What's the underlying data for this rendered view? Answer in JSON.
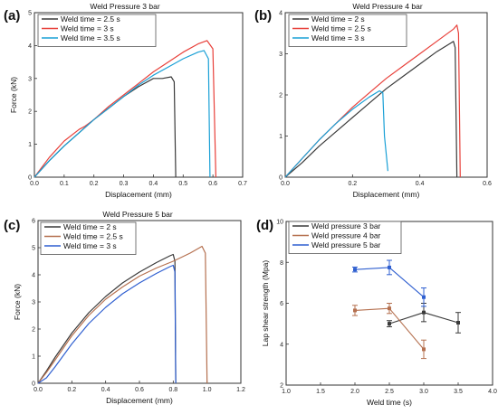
{
  "colors": {
    "black": "#3a3a3a",
    "red": "#e8403a",
    "cyan": "#1aa0d6",
    "brown": "#b5704f",
    "blue": "#2f5fd0"
  },
  "chart_data": [
    {
      "type": "line",
      "label": "(a)",
      "title": "Weld Pressure 3 bar",
      "xlabel": "Displacement (mm)",
      "ylabel": "Force (kN)",
      "xlim": [
        0,
        0.7
      ],
      "ylim": [
        0,
        5
      ],
      "xticks": [
        "0.0",
        "0.1",
        "0.2",
        "0.3",
        "0.4",
        "0.5",
        "0.6",
        "0.7"
      ],
      "yticks": [
        "0",
        "1",
        "2",
        "3",
        "4",
        "5"
      ],
      "legend_position": "top-left",
      "series": [
        {
          "name": "Weld time = 2.5 s",
          "color": "black",
          "x": [
            0,
            0.05,
            0.1,
            0.15,
            0.2,
            0.25,
            0.3,
            0.35,
            0.4,
            0.43,
            0.46,
            0.47,
            0.475
          ],
          "y": [
            0,
            0.5,
            0.95,
            1.35,
            1.75,
            2.1,
            2.45,
            2.75,
            3.0,
            3.0,
            3.05,
            2.9,
            0
          ]
        },
        {
          "name": "Weld time = 3 s",
          "color": "red",
          "x": [
            0,
            0.05,
            0.1,
            0.15,
            0.17,
            0.2,
            0.25,
            0.3,
            0.35,
            0.4,
            0.45,
            0.5,
            0.55,
            0.58,
            0.6,
            0.61
          ],
          "y": [
            0,
            0.6,
            1.1,
            1.45,
            1.55,
            1.75,
            2.15,
            2.5,
            2.85,
            3.2,
            3.5,
            3.8,
            4.05,
            4.15,
            3.9,
            0
          ]
        },
        {
          "name": "Weld time = 3.5 s",
          "color": "cyan",
          "x": [
            0,
            0.05,
            0.1,
            0.15,
            0.2,
            0.25,
            0.3,
            0.35,
            0.4,
            0.45,
            0.5,
            0.55,
            0.57,
            0.585,
            0.59
          ],
          "y": [
            0,
            0.5,
            0.95,
            1.35,
            1.75,
            2.1,
            2.45,
            2.8,
            3.1,
            3.35,
            3.6,
            3.8,
            3.85,
            3.6,
            0
          ]
        }
      ]
    },
    {
      "type": "line",
      "label": "(b)",
      "title": "Weld Pressure 4 bar",
      "xlabel": "Displacement (mm)",
      "ylabel": "",
      "xlim": [
        0,
        0.6
      ],
      "ylim": [
        0,
        4
      ],
      "xticks": [
        "0.0",
        "0.2",
        "0.4",
        "0.6"
      ],
      "yticks": [
        "0",
        "1",
        "2",
        "3",
        "4"
      ],
      "legend_position": "top-left",
      "series": [
        {
          "name": "Weld time = 2 s",
          "color": "black",
          "x": [
            0,
            0.05,
            0.1,
            0.15,
            0.2,
            0.25,
            0.3,
            0.35,
            0.4,
            0.45,
            0.49,
            0.5,
            0.505,
            0.51
          ],
          "y": [
            0,
            0.35,
            0.75,
            1.1,
            1.45,
            1.8,
            2.15,
            2.45,
            2.75,
            3.05,
            3.25,
            3.3,
            3.15,
            0
          ]
        },
        {
          "name": "Weld time = 2.5 s",
          "color": "red",
          "x": [
            0,
            0.05,
            0.1,
            0.15,
            0.2,
            0.25,
            0.3,
            0.35,
            0.4,
            0.45,
            0.5,
            0.51,
            0.515,
            0.52
          ],
          "y": [
            0,
            0.45,
            0.9,
            1.3,
            1.7,
            2.05,
            2.4,
            2.7,
            3.0,
            3.3,
            3.6,
            3.7,
            3.5,
            0
          ]
        },
        {
          "name": "Weld time = 3 s",
          "color": "cyan",
          "x": [
            0,
            0.05,
            0.1,
            0.15,
            0.2,
            0.25,
            0.28,
            0.29,
            0.295,
            0.305
          ],
          "y": [
            0,
            0.45,
            0.9,
            1.3,
            1.65,
            1.95,
            2.1,
            2.05,
            1.0,
            0.15
          ]
        }
      ]
    },
    {
      "type": "line",
      "label": "(c)",
      "title": "Weld Pressure 5 bar",
      "xlabel": "Displacement (mm)",
      "ylabel": "Force (kN)",
      "xlim": [
        0,
        1.2
      ],
      "ylim": [
        0,
        6
      ],
      "xticks": [
        "0.0",
        "0.2",
        "0.4",
        "0.6",
        "0.8",
        "1.0",
        "1.2"
      ],
      "yticks": [
        "0",
        "1",
        "2",
        "3",
        "4",
        "5",
        "6"
      ],
      "legend_position": "top-left",
      "series": [
        {
          "name": "Weld time = 2 s",
          "color": "black",
          "x": [
            0,
            0.05,
            0.1,
            0.2,
            0.3,
            0.4,
            0.5,
            0.6,
            0.7,
            0.78,
            0.8,
            0.81,
            0.815
          ],
          "y": [
            0,
            0.45,
            0.95,
            1.85,
            2.6,
            3.2,
            3.7,
            4.1,
            4.45,
            4.7,
            4.75,
            4.5,
            0
          ]
        },
        {
          "name": "Weld time = 2.5 s",
          "color": "brown",
          "x": [
            0,
            0.05,
            0.1,
            0.2,
            0.3,
            0.4,
            0.5,
            0.6,
            0.7,
            0.8,
            0.9,
            0.97,
            0.99,
            1.0
          ],
          "y": [
            0,
            0.4,
            0.85,
            1.75,
            2.5,
            3.1,
            3.55,
            3.95,
            4.25,
            4.5,
            4.8,
            5.05,
            4.8,
            0
          ]
        },
        {
          "name": "Weld time = 3 s",
          "color": "blue",
          "x": [
            0,
            0.05,
            0.1,
            0.2,
            0.3,
            0.4,
            0.5,
            0.6,
            0.7,
            0.78,
            0.8,
            0.81,
            0.815
          ],
          "y": [
            0,
            0.2,
            0.6,
            1.45,
            2.2,
            2.8,
            3.3,
            3.7,
            4.05,
            4.3,
            4.35,
            4.1,
            0
          ]
        }
      ]
    },
    {
      "type": "line",
      "label": "(d)",
      "title": "",
      "xlabel": "Weld time (s)",
      "ylabel": "Lap shear strength (Mpa)",
      "xlim": [
        1.0,
        4.0
      ],
      "ylim": [
        2,
        10
      ],
      "xticks": [
        "1.0",
        "1.5",
        "2.0",
        "2.5",
        "3.0",
        "3.5",
        "4.0"
      ],
      "yticks": [
        "2",
        "4",
        "6",
        "8",
        "10"
      ],
      "legend_position": "top-right",
      "series": [
        {
          "name": "Weld pressure 3 bar",
          "color": "black",
          "x": [
            2.5,
            3.0,
            3.5
          ],
          "y": [
            5.0,
            5.55,
            5.05
          ],
          "err": [
            0.15,
            0.45,
            0.5
          ]
        },
        {
          "name": "Weld pressure 4 bar",
          "color": "brown",
          "x": [
            2.0,
            2.5,
            3.0
          ],
          "y": [
            5.65,
            5.75,
            3.75
          ],
          "err": [
            0.25,
            0.25,
            0.45
          ]
        },
        {
          "name": "Weld pressure 5 bar",
          "color": "blue",
          "x": [
            2.0,
            2.5,
            3.0
          ],
          "y": [
            7.65,
            7.75,
            6.3
          ],
          "err": [
            0.12,
            0.35,
            0.45
          ]
        }
      ]
    }
  ]
}
